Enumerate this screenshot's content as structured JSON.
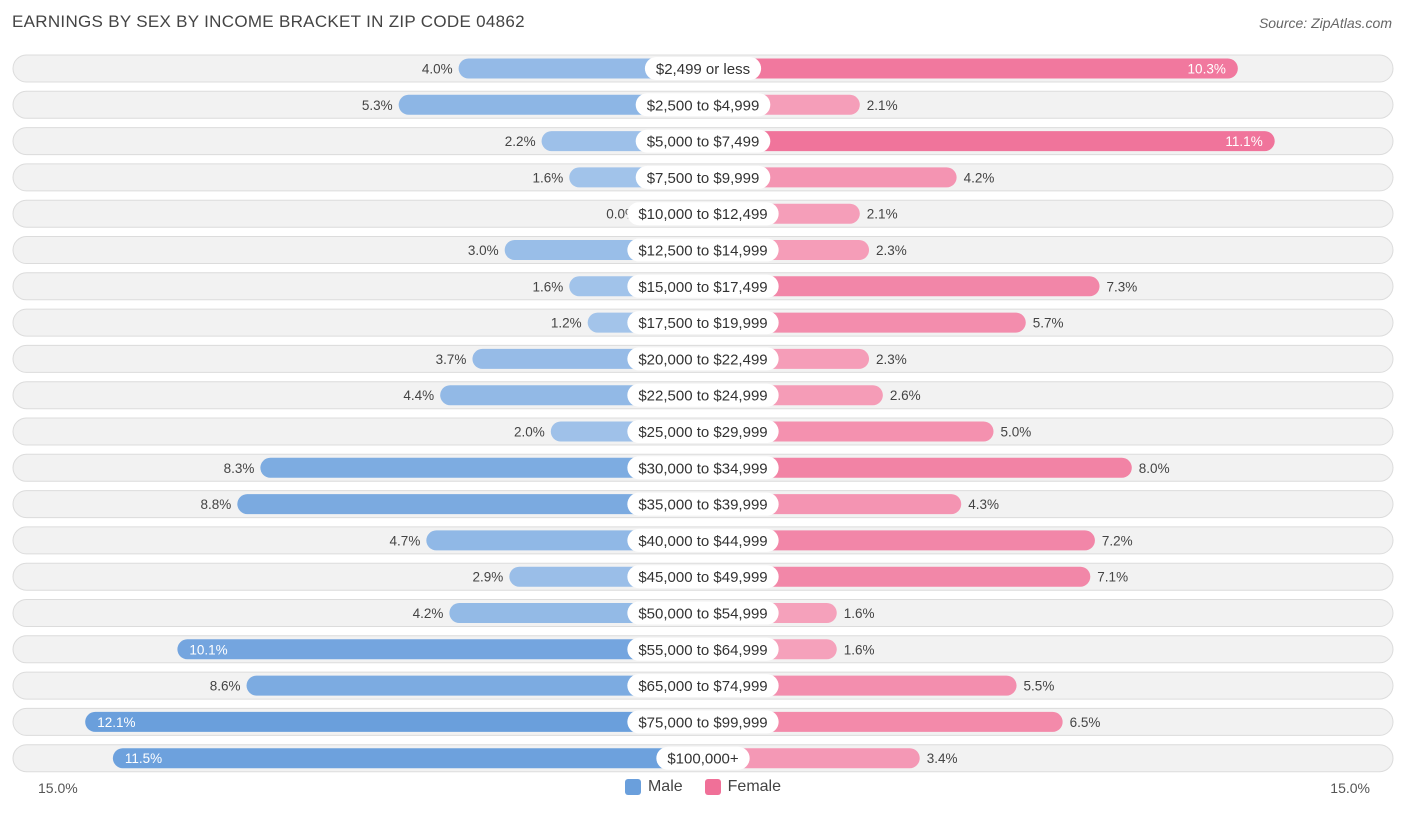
{
  "title": "EARNINGS BY SEX BY INCOME BRACKET IN ZIP CODE 04862",
  "source": "Source: ZipAtlas.com",
  "colors": {
    "male_light": "#a9c8ec",
    "male_dark": "#6a9fdc",
    "female_light": "#f6a8c0",
    "female_dark": "#f07098"
  },
  "legend": {
    "male": "Male",
    "female": "Female"
  },
  "axis": {
    "left_label": "15.0%",
    "right_label": "15.0%"
  },
  "chart_data": {
    "type": "bar",
    "orientation": "diverging-horizontal",
    "title": "EARNINGS BY SEX BY INCOME BRACKET IN ZIP CODE 04862",
    "xlim": [
      -15.0,
      15.0
    ],
    "unit": "%",
    "categories": [
      "$2,499 or less",
      "$2,500 to $4,999",
      "$5,000 to $7,499",
      "$7,500 to $9,999",
      "$10,000 to $12,499",
      "$12,500 to $14,999",
      "$15,000 to $17,499",
      "$17,500 to $19,999",
      "$20,000 to $22,499",
      "$22,500 to $24,999",
      "$25,000 to $29,999",
      "$30,000 to $34,999",
      "$35,000 to $39,999",
      "$40,000 to $44,999",
      "$45,000 to $49,999",
      "$50,000 to $54,999",
      "$55,000 to $64,999",
      "$65,000 to $74,999",
      "$75,000 to $99,999",
      "$100,000+"
    ],
    "series": [
      {
        "name": "Male",
        "values": [
          4.0,
          5.3,
          2.2,
          1.6,
          0.0,
          3.0,
          1.6,
          1.2,
          3.7,
          4.4,
          2.0,
          8.3,
          8.8,
          4.7,
          2.9,
          4.2,
          10.1,
          8.6,
          12.1,
          11.5
        ],
        "labels": [
          "4.0%",
          "5.3%",
          "2.2%",
          "1.6%",
          "0.0%",
          "3.0%",
          "1.6%",
          "1.2%",
          "3.7%",
          "4.4%",
          "2.0%",
          "8.3%",
          "8.8%",
          "4.7%",
          "2.9%",
          "4.2%",
          "10.1%",
          "8.6%",
          "12.1%",
          "11.5%"
        ]
      },
      {
        "name": "Female",
        "values": [
          10.3,
          2.1,
          11.1,
          4.2,
          2.1,
          2.3,
          7.3,
          5.7,
          2.3,
          2.6,
          5.0,
          8.0,
          4.3,
          7.2,
          7.1,
          1.6,
          1.6,
          5.5,
          6.5,
          3.4
        ],
        "labels": [
          "10.3%",
          "2.1%",
          "11.1%",
          "4.2%",
          "2.1%",
          "2.3%",
          "7.3%",
          "5.7%",
          "2.3%",
          "2.6%",
          "5.0%",
          "8.0%",
          "4.3%",
          "7.2%",
          "7.1%",
          "1.6%",
          "1.6%",
          "5.5%",
          "6.5%",
          "3.4%"
        ]
      }
    ]
  }
}
